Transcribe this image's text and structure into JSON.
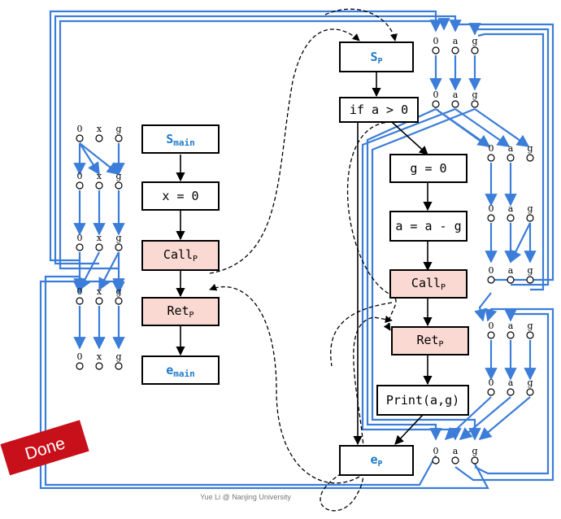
{
  "main_nodes": {
    "start": {
      "name": "S",
      "sub": "main"
    },
    "assign": "x = 0",
    "call": {
      "name": "Call",
      "sub": "P"
    },
    "ret": {
      "name": "Ret",
      "sub": "P"
    },
    "exit": {
      "name": "e",
      "sub": "main"
    }
  },
  "p_nodes": {
    "start": {
      "name": "S",
      "sub": "P"
    },
    "cond": "if a > 0",
    "assign_g": "g = 0",
    "assign_a": "a = a - g",
    "call": {
      "name": "Call",
      "sub": "P"
    },
    "ret": {
      "name": "Ret",
      "sub": "P"
    },
    "print": "Print(a,g)",
    "exit": {
      "name": "e",
      "sub": "P"
    }
  },
  "main_facts": [
    "0",
    "x",
    "g"
  ],
  "p_facts": [
    "0",
    "a",
    "g"
  ],
  "stamp": "Done",
  "credit": "Yue Li @ Nanjing University",
  "colors": {
    "edge_blue": "#3b7dd8",
    "name_blue": "#1f7ac9",
    "call_fill": "#fbd9d3",
    "stamp_red": "#c8101a"
  }
}
